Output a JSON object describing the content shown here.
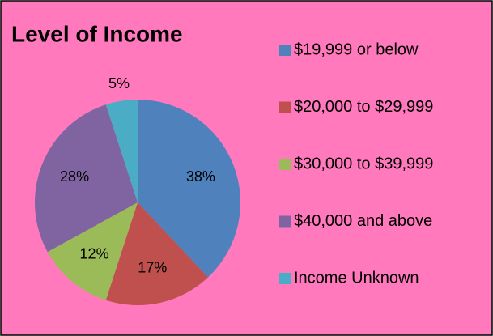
{
  "chart_data": {
    "type": "pie",
    "title": "Level of Income",
    "categories": [
      "$19,999 or below",
      "$20,000 to $29,999",
      "$30,000 to $39,999",
      "$40,000 and above",
      "Income Unknown"
    ],
    "values": [
      38,
      17,
      12,
      28,
      5
    ],
    "value_labels": [
      "38%",
      "17%",
      "12%",
      "28%",
      "5%"
    ],
    "colors": [
      "#4f81bd",
      "#c0504d",
      "#9bbb59",
      "#8064a2",
      "#4bacc6"
    ],
    "legend": "right"
  }
}
